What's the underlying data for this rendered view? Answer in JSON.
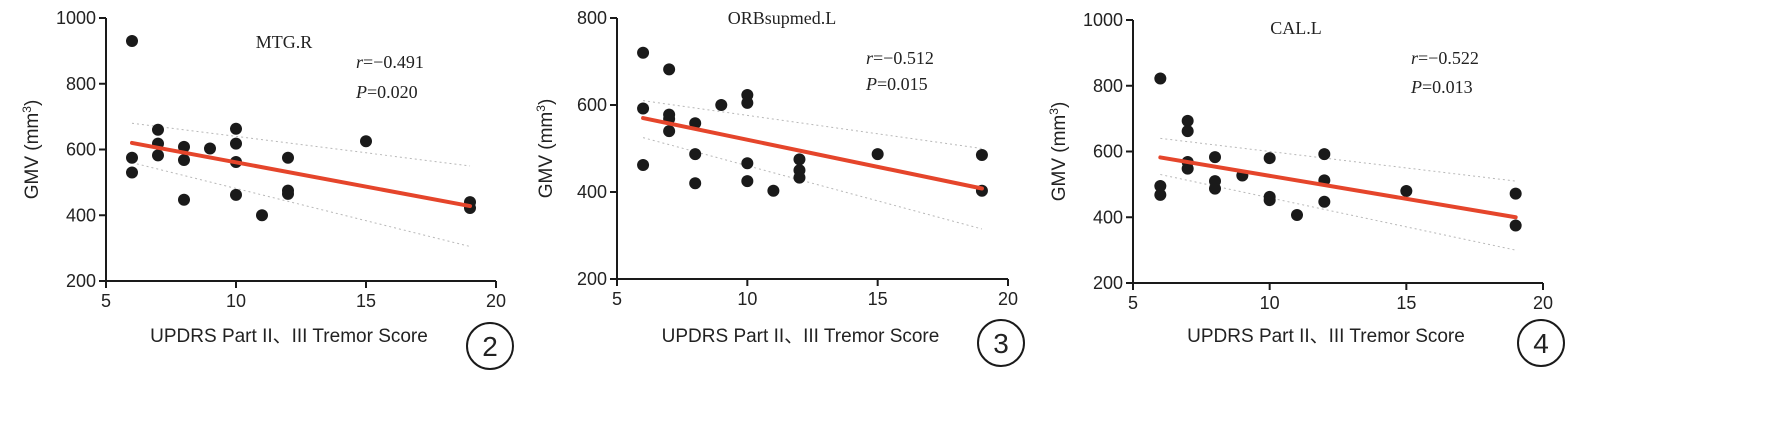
{
  "chart_data": [
    {
      "type": "scatter",
      "title": "MTG.R",
      "xlabel": "UPDRS Part  II、III Tremor Score",
      "ylabel": "GMV (mm",
      "ylabel_sup": "3",
      "ylabel_close": ")",
      "xlim": [
        5,
        20
      ],
      "ylim": [
        200,
        1000
      ],
      "xticks": [
        "5",
        "10",
        "15",
        "20"
      ],
      "yticks": [
        "200",
        "400",
        "600",
        "800",
        "1000"
      ],
      "stat_r": {
        "symbol": "r",
        "value": "=−0.491"
      },
      "stat_p": {
        "symbol": "P",
        "value": "=0.020"
      },
      "panel_number": "2",
      "fit_line": {
        "x": [
          6,
          19
        ],
        "y": [
          620,
          428
        ]
      },
      "confidence_band": {
        "upper": [
          680,
          550
        ],
        "lower": [
          560,
          305
        ]
      },
      "points": [
        {
          "x": 6,
          "y": 930
        },
        {
          "x": 6,
          "y": 575
        },
        {
          "x": 6,
          "y": 530
        },
        {
          "x": 7,
          "y": 660
        },
        {
          "x": 7,
          "y": 618
        },
        {
          "x": 7,
          "y": 582
        },
        {
          "x": 8,
          "y": 608
        },
        {
          "x": 8,
          "y": 568
        },
        {
          "x": 8,
          "y": 447
        },
        {
          "x": 9,
          "y": 603
        },
        {
          "x": 10,
          "y": 663
        },
        {
          "x": 10,
          "y": 618
        },
        {
          "x": 10,
          "y": 562
        },
        {
          "x": 10,
          "y": 462
        },
        {
          "x": 11,
          "y": 400
        },
        {
          "x": 12,
          "y": 575
        },
        {
          "x": 12,
          "y": 475
        },
        {
          "x": 12,
          "y": 465
        },
        {
          "x": 15,
          "y": 625
        },
        {
          "x": 19,
          "y": 440
        },
        {
          "x": 19,
          "y": 422
        }
      ]
    },
    {
      "type": "scatter",
      "title": "ORBsupmed.L",
      "xlabel": "UPDRS Part  II、III Tremor Score",
      "ylabel": "GMV (mm",
      "ylabel_sup": "3",
      "ylabel_close": ")",
      "xlim": [
        5,
        20
      ],
      "ylim": [
        200,
        800
      ],
      "xticks": [
        "5",
        "10",
        "15",
        "20"
      ],
      "yticks": [
        "200",
        "400",
        "600",
        "800"
      ],
      "stat_r": {
        "symbol": "r",
        "value": "=−0.512"
      },
      "stat_p": {
        "symbol": "P",
        "value": "=0.015"
      },
      "panel_number": "3",
      "fit_line": {
        "x": [
          6,
          19
        ],
        "y": [
          570,
          408
        ]
      },
      "confidence_band": {
        "upper": [
          610,
          500
        ],
        "lower": [
          525,
          315
        ]
      },
      "points": [
        {
          "x": 6,
          "y": 720
        },
        {
          "x": 6,
          "y": 592
        },
        {
          "x": 6,
          "y": 462
        },
        {
          "x": 7,
          "y": 682
        },
        {
          "x": 7,
          "y": 578
        },
        {
          "x": 7,
          "y": 568
        },
        {
          "x": 7,
          "y": 540
        },
        {
          "x": 8,
          "y": 558
        },
        {
          "x": 8,
          "y": 487
        },
        {
          "x": 8,
          "y": 420
        },
        {
          "x": 9,
          "y": 600
        },
        {
          "x": 10,
          "y": 623
        },
        {
          "x": 10,
          "y": 605
        },
        {
          "x": 10,
          "y": 466
        },
        {
          "x": 10,
          "y": 425
        },
        {
          "x": 11,
          "y": 403
        },
        {
          "x": 12,
          "y": 475
        },
        {
          "x": 12,
          "y": 450
        },
        {
          "x": 12,
          "y": 433
        },
        {
          "x": 15,
          "y": 487
        },
        {
          "x": 19,
          "y": 485
        },
        {
          "x": 19,
          "y": 403
        }
      ]
    },
    {
      "type": "scatter",
      "title": "CAL.L",
      "xlabel": "UPDRS Part  II、III Tremor Score",
      "ylabel": "GMV (mm",
      "ylabel_sup": "3",
      "ylabel_close": ")",
      "xlim": [
        5,
        20
      ],
      "ylim": [
        200,
        1000
      ],
      "xticks": [
        "5",
        "10",
        "15",
        "20"
      ],
      "yticks": [
        "200",
        "400",
        "600",
        "800",
        "1000"
      ],
      "stat_r": {
        "symbol": "r",
        "value": "=−0.522"
      },
      "stat_p": {
        "symbol": "P",
        "value": "=0.013"
      },
      "panel_number": "4",
      "fit_line": {
        "x": [
          6,
          19
        ],
        "y": [
          582,
          400
        ]
      },
      "confidence_band": {
        "upper": [
          640,
          510
        ],
        "lower": [
          530,
          300
        ]
      },
      "points": [
        {
          "x": 6,
          "y": 822
        },
        {
          "x": 6,
          "y": 495
        },
        {
          "x": 6,
          "y": 468
        },
        {
          "x": 7,
          "y": 693
        },
        {
          "x": 7,
          "y": 662
        },
        {
          "x": 7,
          "y": 568
        },
        {
          "x": 7,
          "y": 548
        },
        {
          "x": 8,
          "y": 583
        },
        {
          "x": 8,
          "y": 510
        },
        {
          "x": 8,
          "y": 487
        },
        {
          "x": 9,
          "y": 527
        },
        {
          "x": 10,
          "y": 580
        },
        {
          "x": 10,
          "y": 462
        },
        {
          "x": 10,
          "y": 452
        },
        {
          "x": 11,
          "y": 407
        },
        {
          "x": 12,
          "y": 592
        },
        {
          "x": 12,
          "y": 512
        },
        {
          "x": 12,
          "y": 447
        },
        {
          "x": 15,
          "y": 480
        },
        {
          "x": 19,
          "y": 472
        },
        {
          "x": 19,
          "y": 375
        }
      ]
    }
  ],
  "colors": {
    "point": "#1a1a1a",
    "fit_line": "#e5452b",
    "confidence_band": "#b8b8b8",
    "axis": "#1a1a1a"
  }
}
